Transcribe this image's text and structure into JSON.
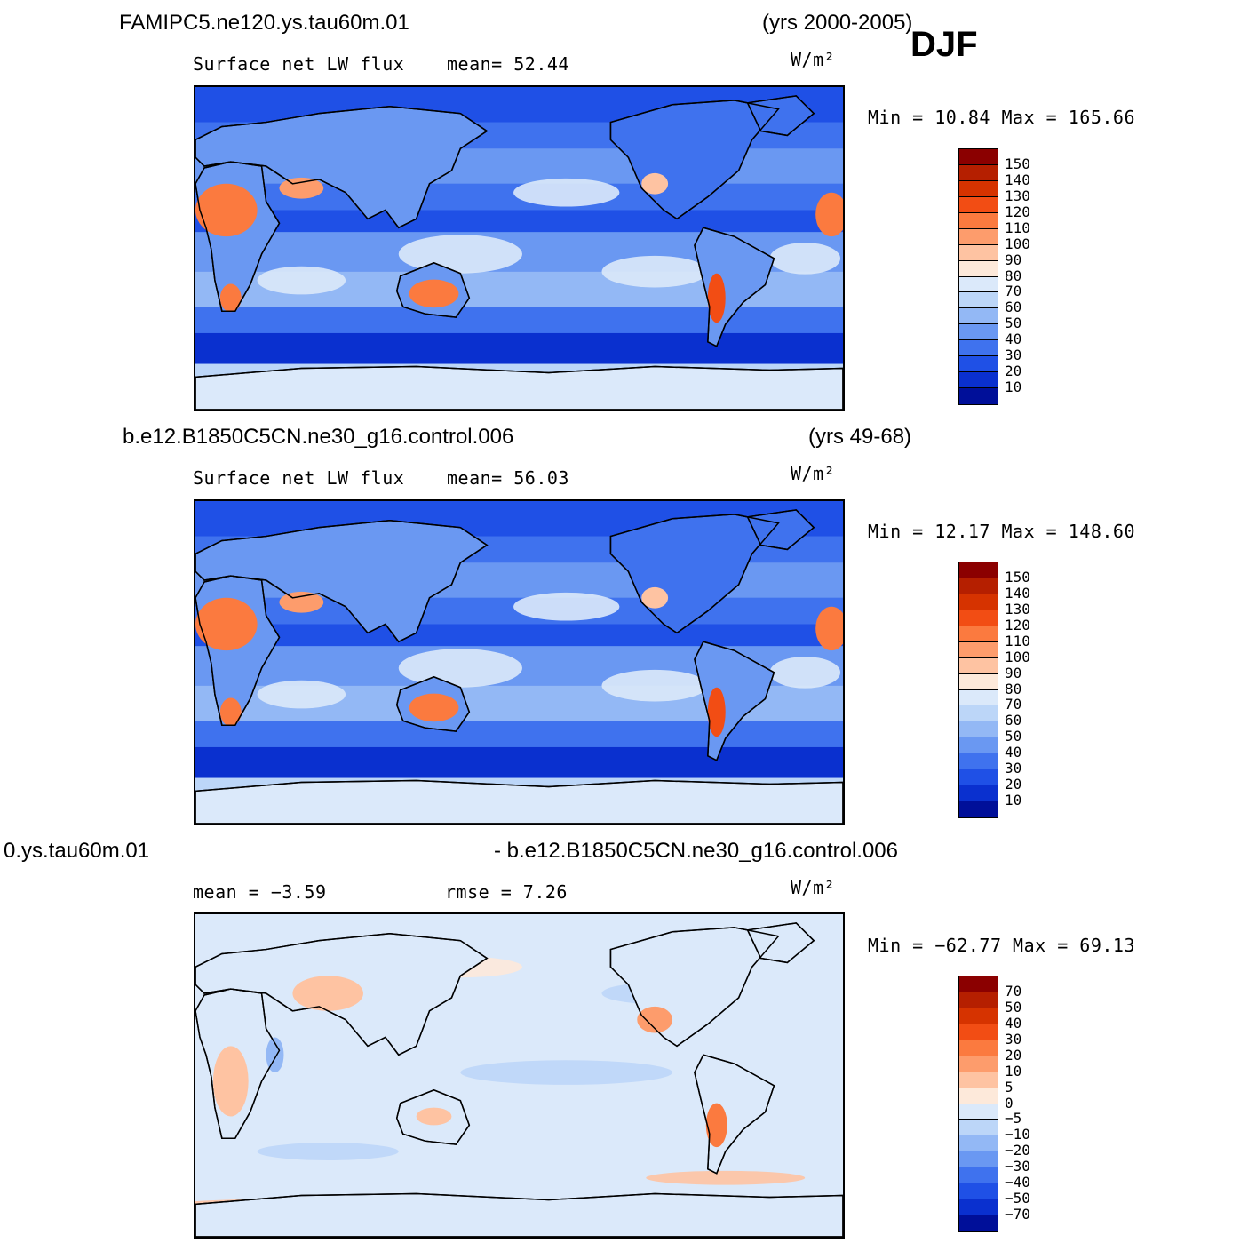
{
  "season": "DJF",
  "panels": [
    {
      "case_title": "FAMIPC5.ne120.ys.tau60m.01",
      "years": "(yrs 2000-2005)",
      "variable": "Surface  net  LW  flux",
      "stat_text": "mean=   52.44",
      "units": "W/m²",
      "minmax": "Min  =   10.84  Max  =  165.66",
      "colorbar_labels": [
        "150",
        "140",
        "130",
        "120",
        "110",
        "100",
        "90",
        "80",
        "70",
        "60",
        "50",
        "40",
        "30",
        "20",
        "10"
      ]
    },
    {
      "case_title": "b.e12.B1850C5CN.ne30_g16.control.006",
      "years": "(yrs 49-68)",
      "variable": "Surface  net  LW  flux",
      "stat_text": "mean=   56.03",
      "units": "W/m²",
      "minmax": "Min  =   12.17  Max  =  148.60",
      "colorbar_labels": [
        "150",
        "140",
        "130",
        "120",
        "110",
        "100",
        "90",
        "80",
        "70",
        "60",
        "50",
        "40",
        "30",
        "20",
        "10"
      ]
    },
    {
      "case_title": "0.ys.tau60m.01",
      "diff_title": "- b.e12.B1850C5CN.ne30_g16.control.006",
      "mean_text": "mean  =   −3.59",
      "rmse_text": "rmse  =    7.26",
      "units": "W/m²",
      "minmax": "Min  = −62.77  Max  =   69.13",
      "colorbar_labels": [
        "70",
        "50",
        "40",
        "30",
        "20",
        "10",
        "5",
        "0",
        "−5",
        "−10",
        "−20",
        "−30",
        "−40",
        "−50",
        "−70"
      ]
    }
  ],
  "colors": {
    "scale": [
      "#8b0000",
      "#b51f00",
      "#d63300",
      "#f24d14",
      "#fb7a3f",
      "#fd9c6c",
      "#fec3a2",
      "#fde9da",
      "#dbe9fa",
      "#bcd6f8",
      "#93b8f5",
      "#6a98f2",
      "#3f72ee",
      "#1f50e6",
      "#0a30cf",
      "#000f99"
    ],
    "land_stroke": "#000000"
  }
}
